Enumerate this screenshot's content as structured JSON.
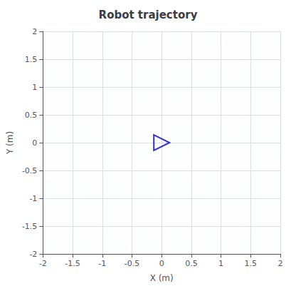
{
  "chart_data": {
    "type": "scatter",
    "title": "Robot trajectory",
    "xlabel": "X (m)",
    "ylabel": "Y (m)",
    "x": [
      0.0
    ],
    "values": [
      0.0
    ],
    "color": "#0000cc",
    "marker": "triangle-right",
    "xlim": [
      -2,
      2
    ],
    "ylim": [
      -2,
      2
    ],
    "xticks": [
      -2,
      -1.5,
      -1,
      -0.5,
      0,
      0.5,
      1,
      1.5,
      2
    ],
    "yticks": [
      -2,
      -1.5,
      -1,
      -0.5,
      0,
      0.5,
      1,
      1.5,
      2
    ],
    "grid": true
  }
}
